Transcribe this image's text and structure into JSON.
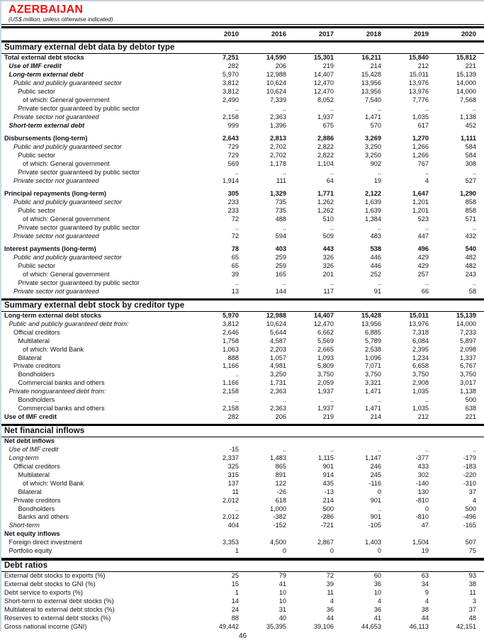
{
  "page": {
    "title": "AZERBAIJAN",
    "subtitle": "(US$ million, unless otherwise indicated)",
    "page_number": "46",
    "title_color": "#ee1212",
    "edge_color": "#c3cfd9",
    "rule_color": "#000000"
  },
  "table": {
    "years": [
      "2010",
      "2016",
      "2017",
      "2018",
      "2019",
      "2020"
    ],
    "missing_marker": "..",
    "sections": [
      {
        "heading": "Summary external debt data by debtor type",
        "rule": "none",
        "rows": [
          {
            "l": "Total external debt stocks",
            "i": 0,
            "s": "b",
            "bv": true,
            "v": [
              "7,251",
              "14,590",
              "15,301",
              "16,211",
              "15,840",
              "15,812"
            ]
          },
          {
            "l": "Use of IMF credit",
            "i": 1,
            "s": "bi",
            "v": [
              "282",
              "206",
              "219",
              "214",
              "212",
              "221"
            ]
          },
          {
            "l": "Long-term external debt",
            "i": 1,
            "s": "bi",
            "v": [
              "5,970",
              "12,988",
              "14,407",
              "15,428",
              "15,011",
              "15,139"
            ]
          },
          {
            "l": "Public and publicly guaranteed sector",
            "i": 2,
            "s": "i",
            "v": [
              "3,812",
              "10,624",
              "12,470",
              "13,956",
              "13,976",
              "14,000"
            ]
          },
          {
            "l": "Public sector",
            "i": 3,
            "s": "n",
            "v": [
              "3,812",
              "10,624",
              "12,470",
              "13,956",
              "13,976",
              "14,000"
            ]
          },
          {
            "l": "of which: General government",
            "i": 4,
            "s": "n",
            "v": [
              "2,490",
              "7,339",
              "8,052",
              "7,540",
              "7,776",
              "7,568"
            ]
          },
          {
            "l": "Private sector guaranteed by public sector",
            "i": 3,
            "s": "n",
            "v": [
              "..",
              "..",
              "..",
              "..",
              "..",
              ".."
            ]
          },
          {
            "l": "Private sector not guaranteed",
            "i": 2,
            "s": "i",
            "v": [
              "2,158",
              "2,363",
              "1,937",
              "1,471",
              "1,035",
              "1,138"
            ]
          },
          {
            "l": "Short-term external debt",
            "i": 1,
            "s": "bi",
            "v": [
              "999",
              "1,396",
              "675",
              "570",
              "617",
              "452"
            ]
          },
          {
            "s": "sp"
          },
          {
            "l": "Disbursements (long-term)",
            "i": 0,
            "s": "b",
            "bv": true,
            "v": [
              "2,643",
              "2,813",
              "2,886",
              "3,269",
              "1,270",
              "1,111"
            ]
          },
          {
            "l": "Public and publicly guaranteed sector",
            "i": 2,
            "s": "i",
            "v": [
              "729",
              "2,702",
              "2,822",
              "3,250",
              "1,266",
              "584"
            ]
          },
          {
            "l": "Public sector",
            "i": 3,
            "s": "n",
            "v": [
              "729",
              "2,702",
              "2,822",
              "3,250",
              "1,266",
              "584"
            ]
          },
          {
            "l": "of which: General government",
            "i": 4,
            "s": "n",
            "v": [
              "569",
              "1,178",
              "1,104",
              "902",
              "767",
              "308"
            ]
          },
          {
            "l": "Private sector guaranteed by public sector",
            "i": 3,
            "s": "n",
            "v": [
              "..",
              "..",
              "..",
              "..",
              "..",
              ".."
            ]
          },
          {
            "l": "Private sector not guaranteed",
            "i": 2,
            "s": "i",
            "v": [
              "1,914",
              "111",
              "64",
              "19",
              "4",
              "527"
            ]
          },
          {
            "s": "sp"
          },
          {
            "l": "Principal repayments (long-term)",
            "i": 0,
            "s": "b",
            "bv": true,
            "v": [
              "305",
              "1,329",
              "1,771",
              "2,122",
              "1,647",
              "1,290"
            ]
          },
          {
            "l": "Public and publicly guaranteed sector",
            "i": 2,
            "s": "i",
            "v": [
              "233",
              "735",
              "1,262",
              "1,639",
              "1,201",
              "858"
            ]
          },
          {
            "l": "Public sector",
            "i": 3,
            "s": "n",
            "v": [
              "233",
              "735",
              "1,262",
              "1,639",
              "1,201",
              "858"
            ]
          },
          {
            "l": "of which: General government",
            "i": 4,
            "s": "n",
            "v": [
              "72",
              "488",
              "510",
              "1,384",
              "523",
              "571"
            ]
          },
          {
            "l": "Private sector guaranteed by public sector",
            "i": 3,
            "s": "n",
            "v": [
              "..",
              "..",
              "..",
              "..",
              "..",
              ".."
            ]
          },
          {
            "l": "Private sector not guaranteed",
            "i": 2,
            "s": "i",
            "v": [
              "72",
              "594",
              "509",
              "483",
              "447",
              "432"
            ]
          },
          {
            "s": "sp"
          },
          {
            "l": "Interest payments (long-term)",
            "i": 0,
            "s": "b",
            "bv": true,
            "v": [
              "78",
              "403",
              "443",
              "538",
              "496",
              "540"
            ]
          },
          {
            "l": "Public and publicly guaranteed sector",
            "i": 2,
            "s": "i",
            "v": [
              "65",
              "259",
              "326",
              "446",
              "429",
              "482"
            ]
          },
          {
            "l": "Public sector",
            "i": 3,
            "s": "n",
            "v": [
              "65",
              "259",
              "326",
              "446",
              "429",
              "482"
            ]
          },
          {
            "l": "of which: General government",
            "i": 4,
            "s": "n",
            "v": [
              "39",
              "165",
              "201",
              "252",
              "257",
              "243"
            ]
          },
          {
            "l": "Private sector guaranteed by public sector",
            "i": 3,
            "s": "n",
            "v": [
              "..",
              "..",
              "..",
              "..",
              "..",
              ".."
            ]
          },
          {
            "l": "Private sector not guaranteed",
            "i": 2,
            "s": "i",
            "v": [
              "13",
              "144",
              "117",
              "91",
              "66",
              "58"
            ]
          }
        ]
      },
      {
        "heading": "Summary external debt stock by creditor type",
        "rule": "sec",
        "rows": [
          {
            "l": "Long-term external debt stocks",
            "i": 0,
            "s": "b",
            "bv": true,
            "v": [
              "5,970",
              "12,988",
              "14,407",
              "15,428",
              "15,011",
              "15,139"
            ]
          },
          {
            "l": "Public and publicly guaranteed debt from:",
            "i": 1,
            "s": "i",
            "v": [
              "3,812",
              "10,624",
              "12,470",
              "13,956",
              "13,976",
              "14,000"
            ]
          },
          {
            "l": "Official creditors",
            "i": 2,
            "s": "n",
            "v": [
              "2,646",
              "5,644",
              "6,662",
              "6,885",
              "7,318",
              "7,233"
            ]
          },
          {
            "l": "Multilateral",
            "i": 3,
            "s": "n",
            "v": [
              "1,758",
              "4,587",
              "5,569",
              "5,789",
              "6,084",
              "5,897"
            ]
          },
          {
            "l": "of which: World Bank",
            "i": 4,
            "s": "n",
            "v": [
              "1,063",
              "2,203",
              "2,665",
              "2,538",
              "2,395",
              "2,098"
            ]
          },
          {
            "l": "Bilateral",
            "i": 3,
            "s": "n",
            "v": [
              "888",
              "1,057",
              "1,093",
              "1,096",
              "1,234",
              "1,337"
            ]
          },
          {
            "l": "Private creditors",
            "i": 2,
            "s": "n",
            "v": [
              "1,166",
              "4,981",
              "5,809",
              "7,071",
              "6,658",
              "6,767"
            ]
          },
          {
            "l": "Bondholders",
            "i": 3,
            "s": "n",
            "v": [
              "..",
              "3,250",
              "3,750",
              "3,750",
              "3,750",
              "3,750"
            ]
          },
          {
            "l": "Commercial banks and others",
            "i": 3,
            "s": "n",
            "v": [
              "1,166",
              "1,731",
              "2,059",
              "3,321",
              "2,908",
              "3,017"
            ]
          },
          {
            "l": "Private nonguaranteed debt from:",
            "i": 1,
            "s": "i",
            "v": [
              "2,158",
              "2,363",
              "1,937",
              "1,471",
              "1,035",
              "1,138"
            ]
          },
          {
            "l": "Bondholders",
            "i": 3,
            "s": "n",
            "v": [
              "..",
              "..",
              "..",
              "..",
              "..",
              "500"
            ]
          },
          {
            "l": "Commercial banks and others",
            "i": 3,
            "s": "n",
            "v": [
              "2,158",
              "2,363",
              "1,937",
              "1,471",
              "1,035",
              "638"
            ]
          },
          {
            "l": "Use of IMF credit",
            "i": 0,
            "s": "b",
            "v": [
              "282",
              "206",
              "219",
              "214",
              "212",
              "221"
            ]
          }
        ]
      },
      {
        "heading": "Net financial inflows",
        "rule": "sec",
        "rows": [
          {
            "l": "Net debt inflows",
            "i": 0,
            "s": "b",
            "v": [
              "",
              "",
              "",
              "",
              "",
              ""
            ]
          },
          {
            "l": "Use of IMF credit",
            "i": 1,
            "s": "i",
            "v": [
              "-15",
              "..",
              "..",
              "..",
              "..",
              ".."
            ]
          },
          {
            "l": "Long-term",
            "i": 1,
            "s": "i",
            "v": [
              "2,337",
              "1,483",
              "1,115",
              "1,147",
              "-377",
              "-179"
            ]
          },
          {
            "l": "Official creditors",
            "i": 2,
            "s": "n",
            "v": [
              "325",
              "865",
              "901",
              "246",
              "433",
              "-183"
            ]
          },
          {
            "l": "Multilateral",
            "i": 3,
            "s": "n",
            "v": [
              "315",
              "891",
              "914",
              "245",
              "302",
              "-220"
            ]
          },
          {
            "l": "of which: World Bank",
            "i": 4,
            "s": "n",
            "v": [
              "137",
              "122",
              "435",
              "-116",
              "-140",
              "-310"
            ]
          },
          {
            "l": "Bilateral",
            "i": 3,
            "s": "n",
            "v": [
              "11",
              "-26",
              "-13",
              "0",
              "130",
              "37"
            ]
          },
          {
            "l": "Private creditors",
            "i": 2,
            "s": "n",
            "v": [
              "2,012",
              "618",
              "214",
              "901",
              "-810",
              "4"
            ]
          },
          {
            "l": "Bondholders",
            "i": 3,
            "s": "n",
            "v": [
              "..",
              "1,000",
              "500",
              "..",
              "0",
              "500"
            ]
          },
          {
            "l": "Banks and others",
            "i": 3,
            "s": "n",
            "v": [
              "2,012",
              "-382",
              "-286",
              "901",
              "-810",
              "-496"
            ]
          },
          {
            "l": "Short-term",
            "i": 1,
            "s": "i",
            "v": [
              "404",
              "-152",
              "-721",
              "-105",
              "47",
              "-165"
            ]
          },
          {
            "l": "Net equity inflows",
            "i": 0,
            "s": "b",
            "v": [
              "",
              "",
              "",
              "",
              "",
              ""
            ]
          },
          {
            "l": "Foreign direct investment",
            "i": 1,
            "s": "n",
            "v": [
              "3,353",
              "4,500",
              "2,867",
              "1,403",
              "1,504",
              "507"
            ]
          },
          {
            "l": "Portfolio equity",
            "i": 1,
            "s": "n",
            "v": [
              "1",
              "0",
              "0",
              "0",
              "19",
              "75"
            ]
          }
        ]
      },
      {
        "heading": "Debt ratios",
        "rule": "xthick",
        "rows": [
          {
            "l": "External debt stocks to exports (%)",
            "i": 0,
            "s": "n",
            "v": [
              "25",
              "79",
              "72",
              "60",
              "63",
              "93"
            ]
          },
          {
            "l": "External debt stocks to GNI (%)",
            "i": 0,
            "s": "n",
            "v": [
              "15",
              "41",
              "39",
              "36",
              "34",
              "38"
            ]
          },
          {
            "l": "Debt service to exports (%)",
            "i": 0,
            "s": "n",
            "v": [
              "1",
              "10",
              "11",
              "10",
              "9",
              "11"
            ]
          },
          {
            "l": "Short-term to external debt stocks (%)",
            "i": 0,
            "s": "n",
            "v": [
              "14",
              "10",
              "4",
              "4",
              "4",
              "3"
            ]
          },
          {
            "l": "Multilateral to external debt stocks (%)",
            "i": 0,
            "s": "n",
            "v": [
              "24",
              "31",
              "36",
              "36",
              "38",
              "37"
            ]
          },
          {
            "l": "Reserves to external debt stocks (%)",
            "i": 0,
            "s": "n",
            "v": [
              "88",
              "40",
              "44",
              "41",
              "44",
              "48"
            ]
          },
          {
            "l": "Gross national income (GNI)",
            "i": 0,
            "s": "n",
            "v": [
              "49,442",
              "35,395",
              "39,106",
              "44,653",
              "46,113",
              "42,151"
            ]
          }
        ]
      }
    ]
  }
}
